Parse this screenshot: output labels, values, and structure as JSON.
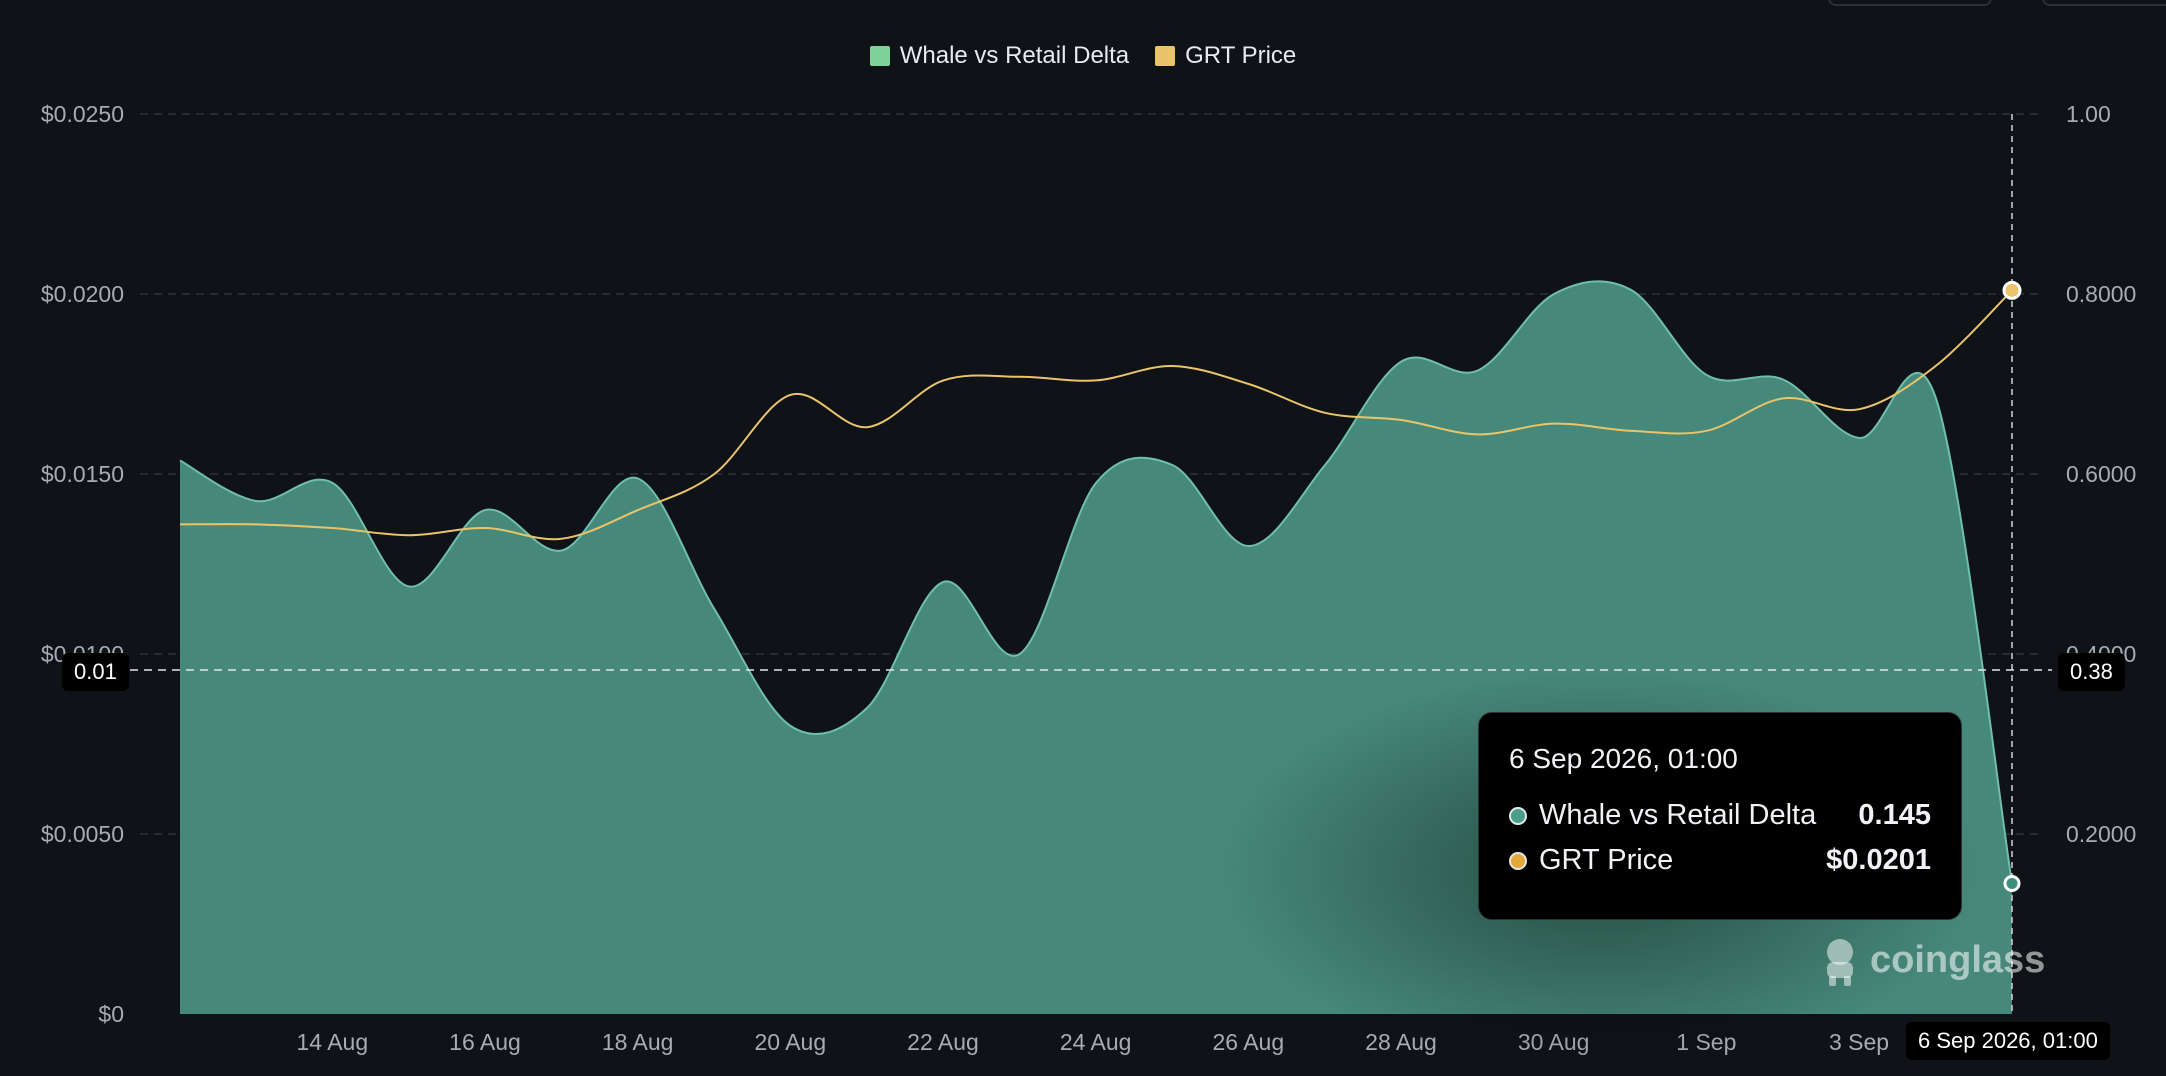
{
  "legend": [
    {
      "label": "Whale vs Retail Delta",
      "color": "#7fd39a"
    },
    {
      "label": "GRT Price",
      "color": "#e9c46a"
    }
  ],
  "chart_data": {
    "type": "area",
    "title": "",
    "x": [
      "13 Aug",
      "14 Aug",
      "15 Aug",
      "16 Aug",
      "17 Aug",
      "18 Aug",
      "19 Aug",
      "20 Aug",
      "21 Aug",
      "22 Aug",
      "23 Aug",
      "24 Aug",
      "25 Aug",
      "26 Aug",
      "27 Aug",
      "28 Aug",
      "29 Aug",
      "30 Aug",
      "31 Aug",
      "1 Sep",
      "2 Sep",
      "3 Sep",
      "4 Sep",
      "5 Sep",
      "6 Sep"
    ],
    "x_ticks": [
      "14 Aug",
      "16 Aug",
      "18 Aug",
      "20 Aug",
      "22 Aug",
      "24 Aug",
      "26 Aug",
      "28 Aug",
      "30 Aug",
      "1 Sep",
      "3 Sep"
    ],
    "x_tick_indices": [
      1,
      3,
      5,
      7,
      9,
      11,
      13,
      15,
      17,
      19,
      21
    ],
    "series": [
      {
        "name": "Whale vs Retail Delta",
        "axis": "right",
        "color": "#4a8f7e",
        "values": [
          0.615,
          0.57,
          0.59,
          0.475,
          0.56,
          0.515,
          0.595,
          0.45,
          0.32,
          0.34,
          0.48,
          0.4,
          0.59,
          0.61,
          0.52,
          0.61,
          0.725,
          0.715,
          0.8,
          0.805,
          0.71,
          0.705,
          0.64,
          0.685,
          0.145
        ]
      },
      {
        "name": "GRT Price",
        "axis": "left",
        "color": "#e9c46a",
        "values": [
          0.0136,
          0.0136,
          0.0135,
          0.0133,
          0.0135,
          0.0132,
          0.014,
          0.015,
          0.0172,
          0.0163,
          0.0176,
          0.0177,
          0.0176,
          0.018,
          0.0175,
          0.0167,
          0.0165,
          0.0161,
          0.0164,
          0.0162,
          0.0162,
          0.0171,
          0.0168,
          0.018,
          0.0201
        ]
      }
    ],
    "left_axis": {
      "ticks": [
        "$0",
        "$0.0050",
        "$0.0100",
        "$0.0150",
        "$0.0200",
        "$0.0250"
      ],
      "ylim": [
        0,
        0.025
      ]
    },
    "right_axis": {
      "ticks": [
        "0.2000",
        "0.4000",
        "0.6000",
        "0.8000",
        "1.00"
      ],
      "ylim": [
        0,
        1.0
      ]
    },
    "crosshair": {
      "left_label": "0.01",
      "right_label": "0.38",
      "x_label": "6 Sep 2026, 01:00"
    }
  },
  "tooltip": {
    "title": "6 Sep 2026, 01:00",
    "rows": [
      {
        "name": "Whale vs Retail Delta",
        "value": "0.145",
        "color": "#4a9e8a"
      },
      {
        "name": "GRT Price",
        "value": "$0.0201",
        "color": "#e0a93a"
      }
    ]
  },
  "watermark": "coinglass"
}
